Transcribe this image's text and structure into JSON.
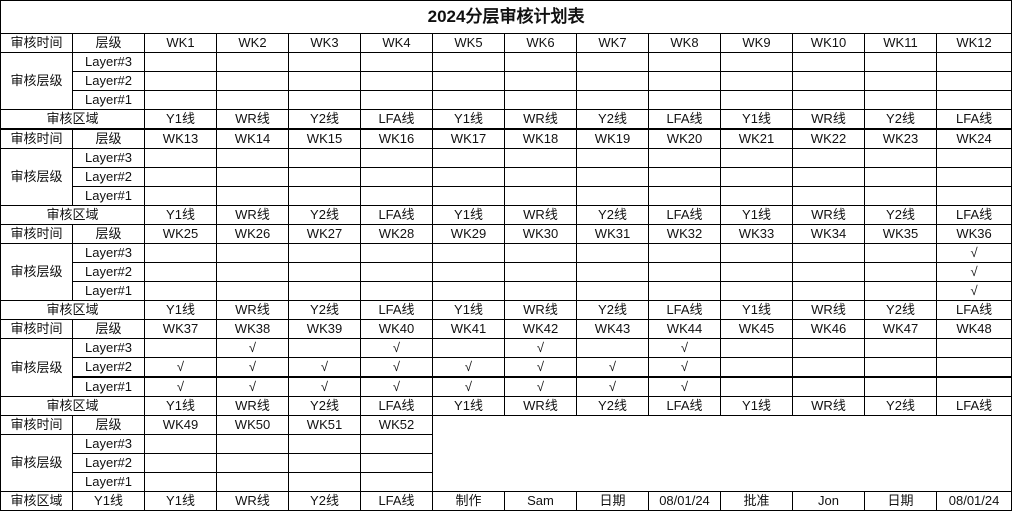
{
  "title": "2024分层审核计划表",
  "labels": {
    "audit_time": "审核时间",
    "level": "层级",
    "audit_level": "审核层级",
    "audit_area": "审核区域",
    "layers": [
      "Layer#3",
      "Layer#2",
      "Layer#1"
    ]
  },
  "blocks": [
    {
      "weeks": [
        "WK1",
        "WK2",
        "WK3",
        "WK4",
        "WK5",
        "WK6",
        "WK7",
        "WK8",
        "WK9",
        "WK10",
        "WK11",
        "WK12"
      ],
      "checks": [
        [
          "",
          "",
          "",
          "",
          "",
          "",
          "",
          "",
          "",
          "",
          "",
          ""
        ],
        [
          "",
          "",
          "",
          "",
          "",
          "",
          "",
          "",
          "",
          "",
          "",
          ""
        ],
        [
          "",
          "",
          "",
          "",
          "",
          "",
          "",
          "",
          "",
          "",
          "",
          ""
        ]
      ],
      "areas": [
        "Y1线",
        "WR线",
        "Y2线",
        "LFA线",
        "Y1线",
        "WR线",
        "Y2线",
        "LFA线",
        "Y1线",
        "WR线",
        "Y2线",
        "LFA线"
      ]
    },
    {
      "weeks": [
        "WK13",
        "WK14",
        "WK15",
        "WK16",
        "WK17",
        "WK18",
        "WK19",
        "WK20",
        "WK21",
        "WK22",
        "WK23",
        "WK24"
      ],
      "checks": [
        [
          "",
          "",
          "",
          "",
          "",
          "",
          "",
          "",
          "",
          "",
          "",
          ""
        ],
        [
          "",
          "",
          "",
          "",
          "",
          "",
          "",
          "",
          "",
          "",
          "",
          ""
        ],
        [
          "",
          "",
          "",
          "",
          "",
          "",
          "",
          "",
          "",
          "",
          "",
          ""
        ]
      ],
      "areas": [
        "Y1线",
        "WR线",
        "Y2线",
        "LFA线",
        "Y1线",
        "WR线",
        "Y2线",
        "LFA线",
        "Y1线",
        "WR线",
        "Y2线",
        "LFA线"
      ]
    },
    {
      "weeks": [
        "WK25",
        "WK26",
        "WK27",
        "WK28",
        "WK29",
        "WK30",
        "WK31",
        "WK32",
        "WK33",
        "WK34",
        "WK35",
        "WK36"
      ],
      "checks": [
        [
          "",
          "",
          "",
          "",
          "",
          "",
          "",
          "",
          "",
          "",
          "",
          "√"
        ],
        [
          "",
          "",
          "",
          "",
          "",
          "",
          "",
          "",
          "",
          "",
          "",
          "√"
        ],
        [
          "",
          "",
          "",
          "",
          "",
          "",
          "",
          "",
          "",
          "",
          "",
          "√"
        ]
      ],
      "areas": [
        "Y1线",
        "WR线",
        "Y2线",
        "LFA线",
        "Y1线",
        "WR线",
        "Y2线",
        "LFA线",
        "Y1线",
        "WR线",
        "Y2线",
        "LFA线"
      ]
    },
    {
      "weeks": [
        "WK37",
        "WK38",
        "WK39",
        "WK40",
        "WK41",
        "WK42",
        "WK43",
        "WK44",
        "WK45",
        "WK46",
        "WK47",
        "WK48"
      ],
      "checks": [
        [
          "",
          "√",
          "",
          "√",
          "",
          "√",
          "",
          "√",
          "",
          "",
          "",
          ""
        ],
        [
          "√",
          "√",
          "√",
          "√",
          "√",
          "√",
          "√",
          "√",
          "",
          "",
          "",
          ""
        ],
        [
          "√",
          "√",
          "√",
          "√",
          "√",
          "√",
          "√",
          "√",
          "",
          "",
          "",
          ""
        ]
      ],
      "areas": [
        "Y1线",
        "WR线",
        "Y2线",
        "LFA线",
        "Y1线",
        "WR线",
        "Y2线",
        "LFA线",
        "Y1线",
        "WR线",
        "Y2线",
        "LFA线"
      ]
    }
  ],
  "last_block": {
    "weeks": [
      "WK49",
      "WK50",
      "WK51",
      "WK52"
    ],
    "checks": [
      [
        "",
        "",
        "",
        ""
      ],
      [
        "",
        "",
        "",
        ""
      ],
      [
        "",
        "",
        "",
        ""
      ]
    ],
    "footer": [
      "Y1线",
      "Y1线",
      "WR线",
      "Y2线",
      "LFA线",
      "制作",
      "Sam",
      "日期",
      "08/01/24",
      "批准",
      "Jon",
      "日期",
      "08/01/24"
    ]
  }
}
